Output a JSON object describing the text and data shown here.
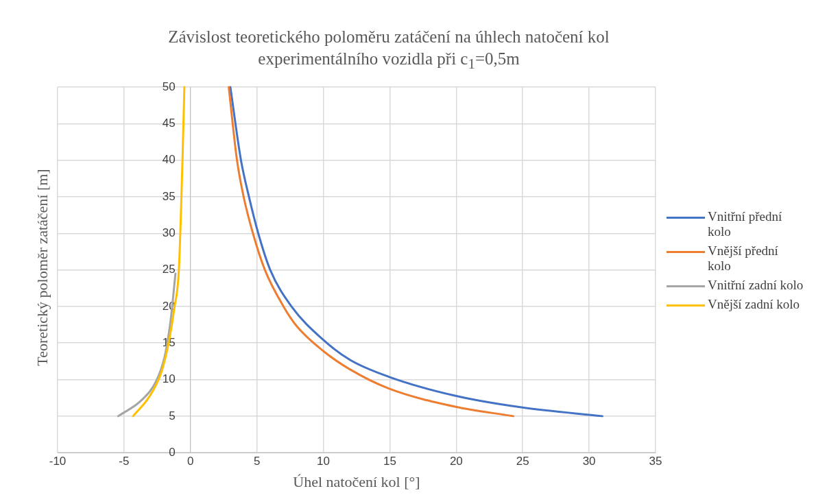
{
  "chart_data": {
    "type": "line",
    "title": "Závislost teoretického poloměru zatáčení na úhlech natočení kol experimentálního vozidla při c$_{1}$=0,5m",
    "xlabel": "Úhel natočení kol [°]",
    "ylabel": "Teoretický poloměr zatáčení [m]",
    "xlim": [
      -10,
      35
    ],
    "xticks": [
      -10,
      -5,
      0,
      5,
      10,
      15,
      20,
      25,
      30,
      35
    ],
    "ylim": [
      0,
      50
    ],
    "yticks": [
      0,
      5,
      10,
      15,
      20,
      25,
      30,
      35,
      40,
      45,
      50
    ],
    "grid": true,
    "legend": "right",
    "marker": "none",
    "line_style": "solid",
    "series": [
      {
        "name": "Vnitřní přední kolo",
        "color": "#4472c4",
        "x": [
          3.0,
          3.8,
          4.4,
          5.1,
          6.0,
          7.6,
          9.95,
          12.0,
          14.9,
          19.9,
          24.9,
          31.0
        ],
        "values": [
          50,
          40,
          35,
          30,
          25,
          20,
          15.5,
          12.7,
          10.4,
          7.8,
          6.2,
          5
        ]
      },
      {
        "name": "Vnější přední kolo",
        "color": "#ed7d31",
        "x": [
          2.88,
          3.5,
          4.0,
          4.7,
          5.6,
          7.0,
          8.0,
          10.0,
          12.0,
          14.9,
          19.9,
          24.3
        ],
        "values": [
          50,
          40,
          35,
          30,
          25,
          20,
          17.3,
          13.9,
          11.4,
          8.8,
          6.3,
          5
        ]
      },
      {
        "name": "Vnitřní zadní kolo",
        "color": "#a5a5a5",
        "x": [
          -5.44,
          -3.67,
          -2.58,
          -1.95,
          -1.5,
          -1.13
        ],
        "values": [
          5,
          7.2,
          9.8,
          13.1,
          18,
          24.5
        ]
      },
      {
        "name": "Vnější zadní kolo",
        "color": "#ffc000",
        "x": [
          -4.32,
          -3.12,
          -2.23,
          -1.68,
          -1.23,
          -0.87,
          -0.68,
          -0.59,
          -0.46
        ],
        "values": [
          5,
          7.6,
          10.8,
          14.7,
          19.6,
          25.1,
          35,
          40.8,
          50
        ]
      }
    ]
  }
}
